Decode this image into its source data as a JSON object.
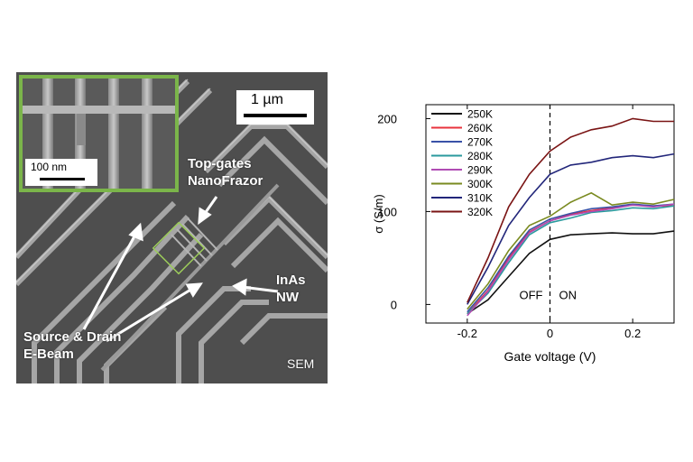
{
  "sem": {
    "scale_main": "1 µm",
    "scale_inset": "100 nm",
    "label_topgates_1": "Top-gates",
    "label_topgates_2": "NanoFrazor",
    "label_inas_1": "InAs",
    "label_inas_2": "NW",
    "label_sd_1": "Source & Drain",
    "label_sd_2": "E-Beam",
    "label_sem": "SEM",
    "colors": {
      "inset_border": "#7bb54a",
      "background": "#4e4e4e"
    }
  },
  "chart_data": {
    "type": "line",
    "xlabel": "Gate voltage (V)",
    "ylabel": "σ (S/m)",
    "xlim": [
      -0.3,
      0.3
    ],
    "ylim": [
      -20,
      215
    ],
    "xticks": [
      -0.2,
      0,
      0.2
    ],
    "xtick_labels": [
      "-0.2",
      "0",
      "0.2"
    ],
    "yticks": [
      0,
      100,
      200
    ],
    "ytick_labels": [
      "0",
      "100",
      "200"
    ],
    "annotations": {
      "off": "OFF",
      "on": "ON",
      "divider_x": 0
    },
    "legend_position": "top-left",
    "x": [
      -0.2,
      -0.15,
      -0.1,
      -0.05,
      0.0,
      0.05,
      0.1,
      0.15,
      0.2,
      0.25,
      0.3
    ],
    "series": [
      {
        "name": "250K",
        "color": "#111111",
        "values": [
          -10,
          5,
          30,
          55,
          70,
          75,
          76,
          77,
          76,
          76,
          79
        ]
      },
      {
        "name": "260K",
        "color": "#e8323c",
        "values": [
          -10,
          15,
          50,
          78,
          90,
          97,
          101,
          104,
          107,
          106,
          106
        ]
      },
      {
        "name": "270K",
        "color": "#3a52a8",
        "values": [
          -8,
          18,
          52,
          80,
          92,
          98,
          103,
          105,
          108,
          106,
          108
        ]
      },
      {
        "name": "280K",
        "color": "#2a9a9e",
        "values": [
          -10,
          12,
          45,
          75,
          88,
          93,
          99,
          101,
          104,
          103,
          106
        ]
      },
      {
        "name": "290K",
        "color": "#b04cb4",
        "values": [
          -12,
          14,
          48,
          77,
          90,
          96,
          100,
          103,
          107,
          105,
          108
        ]
      },
      {
        "name": "300K",
        "color": "#7a8a20",
        "values": [
          -5,
          22,
          58,
          85,
          95,
          110,
          120,
          107,
          110,
          108,
          113
        ]
      },
      {
        "name": "310K",
        "color": "#22267a",
        "values": [
          0,
          40,
          85,
          115,
          140,
          150,
          153,
          158,
          160,
          158,
          162
        ]
      },
      {
        "name": "320K",
        "color": "#7a1414",
        "values": [
          2,
          50,
          105,
          140,
          165,
          180,
          188,
          192,
          200,
          197,
          197
        ]
      }
    ]
  }
}
